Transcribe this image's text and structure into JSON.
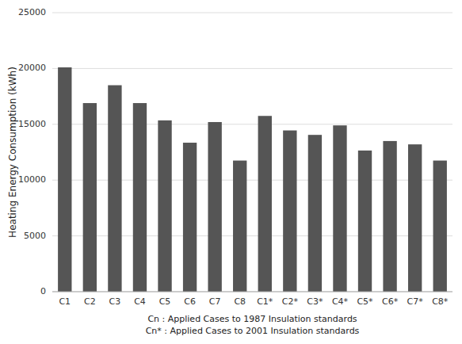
{
  "chart_data": {
    "type": "bar",
    "categories": [
      "C1",
      "C2",
      "C3",
      "C4",
      "C5",
      "C6",
      "C7",
      "C8",
      "C1*",
      "C2*",
      "C3*",
      "C4*",
      "C5*",
      "C6*",
      "C7*",
      "C8*"
    ],
    "values": [
      20100,
      16900,
      18500,
      16900,
      15350,
      13350,
      15200,
      11750,
      15750,
      14450,
      14050,
      14900,
      12650,
      13500,
      13200,
      11750
    ],
    "color": "#555555",
    "ylabel": "Heating Energy Consumption (kWh)",
    "xlabel": "Cn : Applied Cases to 1987 Insulation standards\nCn* : Applied Cases to 2001 Insulation standards",
    "ylim": [
      0,
      25000
    ],
    "yticks": [
      0,
      5000,
      10000,
      15000,
      20000,
      25000
    ],
    "grid": true
  }
}
